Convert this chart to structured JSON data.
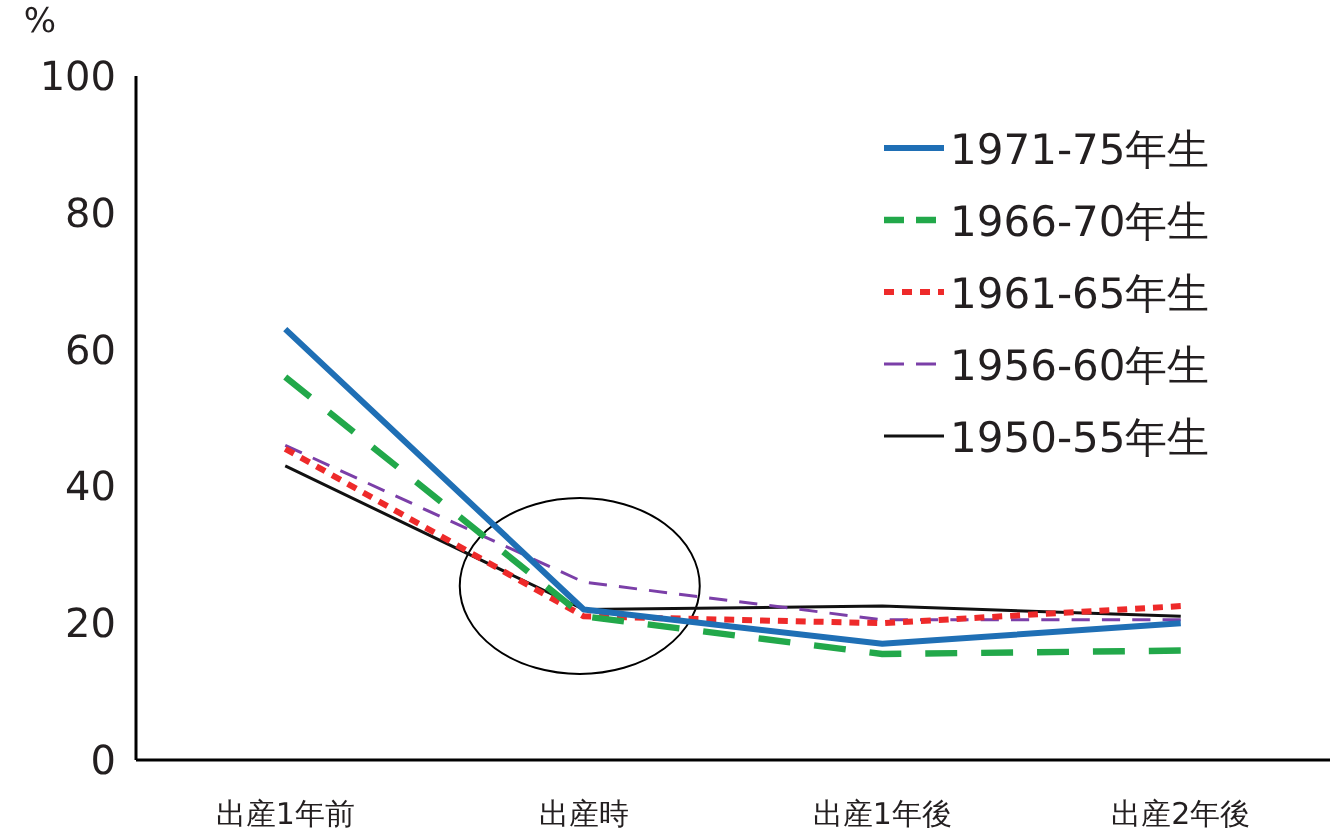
{
  "chart_data": {
    "type": "line",
    "ylabel": "%",
    "categories": [
      "出産1年前",
      "出産時",
      "出産1年後",
      "出産2年後"
    ],
    "ylim": [
      0,
      100
    ],
    "yticks": [
      0,
      20,
      40,
      60,
      80,
      100
    ],
    "grid": false,
    "legend": "top right",
    "series": [
      {
        "name": "1971-75年生",
        "color": "#1f6fb5",
        "line_style": "solid",
        "values": [
          63,
          22,
          17,
          20
        ]
      },
      {
        "name": "1966-70年生",
        "color": "#22a84a",
        "line_style": "dashed",
        "values": [
          56,
          21,
          15.5,
          16
        ]
      },
      {
        "name": "1961-65年生",
        "color": "#ee2a2a",
        "line_style": "dotted",
        "values": [
          45.5,
          21,
          20,
          22.5
        ]
      },
      {
        "name": "1956-60年生",
        "color": "#7b3fa8",
        "line_style": "dashed",
        "values": [
          46,
          26,
          20.5,
          20.5
        ]
      },
      {
        "name": "1950-55年生",
        "color": "#111111",
        "line_style": "solid",
        "values": [
          43,
          22,
          22.5,
          21
        ]
      }
    ]
  }
}
